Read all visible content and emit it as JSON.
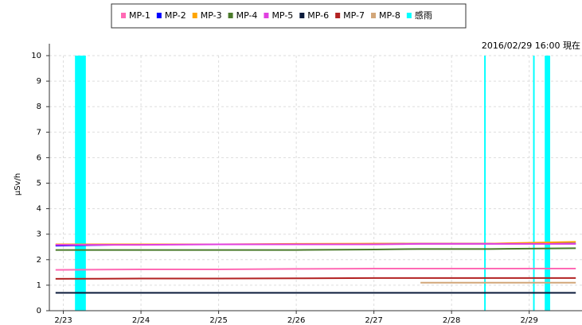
{
  "chart_data": {
    "type": "line",
    "annotation": "2016/02/29 16:00 現在",
    "y_label": "μSv/h",
    "x": [
      -0.1,
      1,
      2,
      3,
      4,
      4.6,
      5.5,
      6.6
    ],
    "xlim": [
      -0.18,
      6.68
    ],
    "xticks": [
      {
        "value": 0,
        "label": "2/23"
      },
      {
        "value": 1,
        "label": "2/24"
      },
      {
        "value": 2,
        "label": "2/25"
      },
      {
        "value": 3,
        "label": "2/26"
      },
      {
        "value": 4,
        "label": "2/27"
      },
      {
        "value": 5,
        "label": "2/28"
      },
      {
        "value": 6,
        "label": "2/29"
      }
    ],
    "ylim": [
      0,
      10
    ],
    "yticks": [
      0,
      1,
      2,
      3,
      4,
      5,
      6,
      7,
      8,
      9,
      10
    ],
    "grid": true,
    "series": [
      {
        "name": "MP-1",
        "color": "#ff69b4",
        "values": [
          1.6,
          1.62,
          1.62,
          1.64,
          1.65,
          1.65,
          1.65,
          1.65
        ]
      },
      {
        "name": "MP-2",
        "color": "#0000ff",
        "values": [
          2.55,
          2.6,
          2.6,
          2.6,
          2.62,
          2.63,
          2.63,
          2.63
        ]
      },
      {
        "name": "MP-3",
        "color": "#ffa500",
        "values": [
          2.6,
          2.6,
          2.6,
          2.62,
          2.63,
          2.63,
          2.63,
          2.7
        ]
      },
      {
        "name": "MP-4",
        "color": "#4a7a2a",
        "values": [
          2.38,
          2.38,
          2.38,
          2.38,
          2.4,
          2.42,
          2.42,
          2.45
        ]
      },
      {
        "name": "MP-5",
        "color": "#e040e0",
        "values": [
          2.58,
          2.58,
          2.6,
          2.6,
          2.6,
          2.62,
          2.62,
          2.62
        ]
      },
      {
        "name": "MP-6",
        "color": "#0a1a3a",
        "values": [
          0.7,
          0.7,
          0.7,
          0.7,
          0.7,
          0.7,
          0.7,
          0.7
        ]
      },
      {
        "name": "MP-7",
        "color": "#b22222",
        "values": [
          1.25,
          1.26,
          1.26,
          1.27,
          1.28,
          1.28,
          1.28,
          1.28
        ]
      },
      {
        "name": "MP-8",
        "color": "#d2a679",
        "values": [
          null,
          null,
          null,
          null,
          null,
          1.1,
          1.1,
          1.1
        ]
      }
    ],
    "rain": {
      "name": "感雨",
      "color": "#00ffff",
      "x0": [
        0.15,
        5.42,
        6.05,
        6.2
      ],
      "x1": [
        0.29,
        5.44,
        6.07,
        6.27
      ],
      "values": [
        10,
        10,
        10,
        10
      ]
    }
  }
}
